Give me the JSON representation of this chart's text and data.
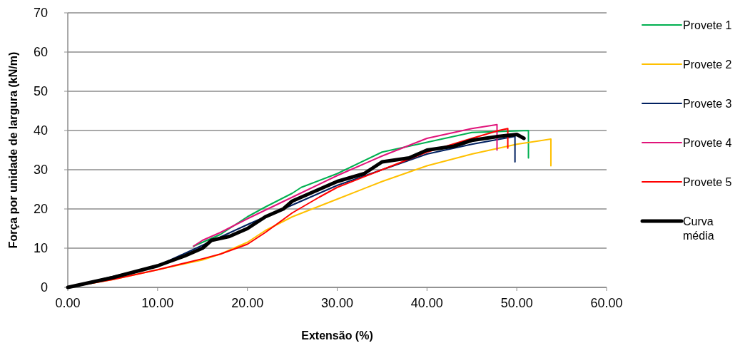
{
  "chart_data": {
    "type": "line",
    "xlabel": "Extensão (%)",
    "ylabel": "Força por unidade de largura (kN/m)",
    "xlim": [
      0,
      60
    ],
    "ylim": [
      0,
      70
    ],
    "xticks": [
      {
        "value": 0,
        "label": "0.00"
      },
      {
        "value": 10,
        "label": "10.00"
      },
      {
        "value": 20,
        "label": "20.00"
      },
      {
        "value": 30,
        "label": "30.00"
      },
      {
        "value": 40,
        "label": "40.00"
      },
      {
        "value": 50,
        "label": "50.00"
      },
      {
        "value": 60,
        "label": "60.00"
      }
    ],
    "yticks": [
      0,
      10,
      20,
      30,
      40,
      50,
      60,
      70
    ],
    "grid": "y",
    "legend": "right",
    "line_style": "solid",
    "series": [
      {
        "name": "Provete 1",
        "color": "#00b050",
        "x": [
          14,
          15,
          17,
          18,
          20,
          22,
          25,
          26,
          30,
          35,
          40,
          45,
          51.3,
          51.3
        ],
        "values": [
          10.5,
          11.5,
          13.5,
          15,
          18,
          20.5,
          24,
          25.5,
          29,
          34.5,
          37,
          39.5,
          40,
          33
        ]
      },
      {
        "name": "Provete 2",
        "color": "#ffc000",
        "x": [
          0,
          5,
          10,
          15,
          17,
          20,
          22,
          25,
          30,
          35,
          40,
          45,
          50,
          53.8,
          53.8
        ],
        "values": [
          0,
          2,
          4.5,
          7,
          8.5,
          11.5,
          14.5,
          18,
          22.5,
          27,
          31,
          34,
          36.5,
          37.8,
          31
        ]
      },
      {
        "name": "Provete 3",
        "color": "#002060",
        "x": [
          0,
          10,
          20,
          30,
          40,
          45,
          49.8,
          49.8
        ],
        "values": [
          0,
          5.5,
          16,
          26,
          34,
          36.5,
          38.5,
          32
        ]
      },
      {
        "name": "Provete 4",
        "color": "#e0147a",
        "x": [
          14,
          15,
          17,
          20,
          25,
          30,
          35,
          40,
          45,
          47.8,
          47.8
        ],
        "values": [
          10.5,
          12,
          14,
          17.5,
          23,
          28.5,
          33.5,
          38,
          40.5,
          41.5,
          35
        ]
      },
      {
        "name": "Provete 5",
        "color": "#ff0000",
        "x": [
          0,
          5,
          10,
          15,
          17,
          20,
          22,
          25,
          28,
          30,
          35,
          40,
          45,
          48,
          49,
          49
        ],
        "values": [
          0,
          2,
          4.5,
          7.3,
          8.5,
          11,
          14,
          19,
          23,
          25.5,
          30,
          34.5,
          38,
          40,
          40.5,
          35.5
        ]
      },
      {
        "name": "Curva média",
        "color": "#000000",
        "x": [
          0,
          5,
          10,
          13,
          15,
          16,
          18,
          20,
          22,
          24,
          25,
          27,
          30,
          33,
          35,
          38,
          40,
          43,
          45,
          48,
          50,
          50.8
        ],
        "values": [
          0,
          2.5,
          5.5,
          8,
          10,
          12,
          13,
          15,
          18,
          20,
          22,
          24,
          27,
          29,
          32,
          33,
          35,
          36,
          37.5,
          38.5,
          39,
          38
        ]
      }
    ]
  }
}
